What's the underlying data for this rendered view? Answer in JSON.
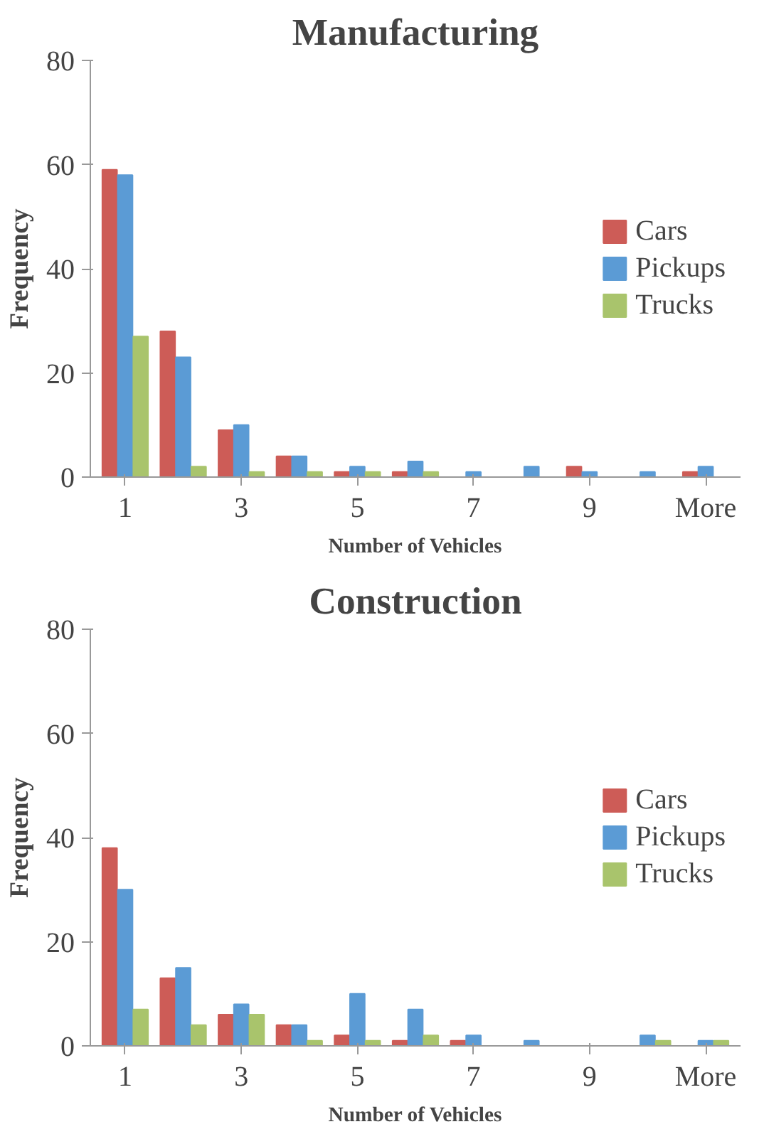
{
  "chart_data": [
    {
      "type": "bar",
      "title": "Manufacturing",
      "xlabel": "Number of Vehicles",
      "ylabel": "Frequency",
      "categories": [
        "1",
        null,
        "3",
        null,
        "5",
        null,
        "7",
        null,
        "9",
        null,
        "More"
      ],
      "ylim": [
        0,
        80
      ],
      "yticks": [
        0,
        20,
        40,
        60,
        80
      ],
      "grid": false,
      "legend": "right",
      "series": [
        {
          "name": "Cars",
          "color": "#cd5c57",
          "values": [
            59,
            28,
            9,
            4,
            1,
            1,
            0,
            0,
            2,
            0,
            1
          ]
        },
        {
          "name": "Pickups",
          "color": "#5b9bd5",
          "values": [
            58,
            23,
            10,
            4,
            2,
            3,
            1,
            2,
            1,
            1,
            2
          ]
        },
        {
          "name": "Trucks",
          "color": "#a9c46c",
          "values": [
            27,
            2,
            1,
            1,
            1,
            1,
            0,
            0,
            0,
            0,
            0
          ]
        }
      ]
    },
    {
      "type": "bar",
      "title": "Construction",
      "xlabel": "Number of Vehicles",
      "ylabel": "Frequency",
      "categories": [
        "1",
        null,
        "3",
        null,
        "5",
        null,
        "7",
        null,
        "9",
        null,
        "More"
      ],
      "ylim": [
        0,
        80
      ],
      "yticks": [
        0,
        20,
        40,
        60,
        80
      ],
      "grid": false,
      "legend": "right",
      "series": [
        {
          "name": "Cars",
          "color": "#cd5c57",
          "values": [
            38,
            13,
            6,
            4,
            2,
            1,
            1,
            0,
            0,
            0,
            0
          ]
        },
        {
          "name": "Pickups",
          "color": "#5b9bd5",
          "values": [
            30,
            15,
            8,
            4,
            10,
            7,
            2,
            1,
            0,
            2,
            1
          ]
        },
        {
          "name": "Trucks",
          "color": "#a9c46c",
          "values": [
            7,
            4,
            6,
            1,
            1,
            2,
            0,
            0,
            0,
            1,
            1
          ]
        }
      ]
    }
  ]
}
